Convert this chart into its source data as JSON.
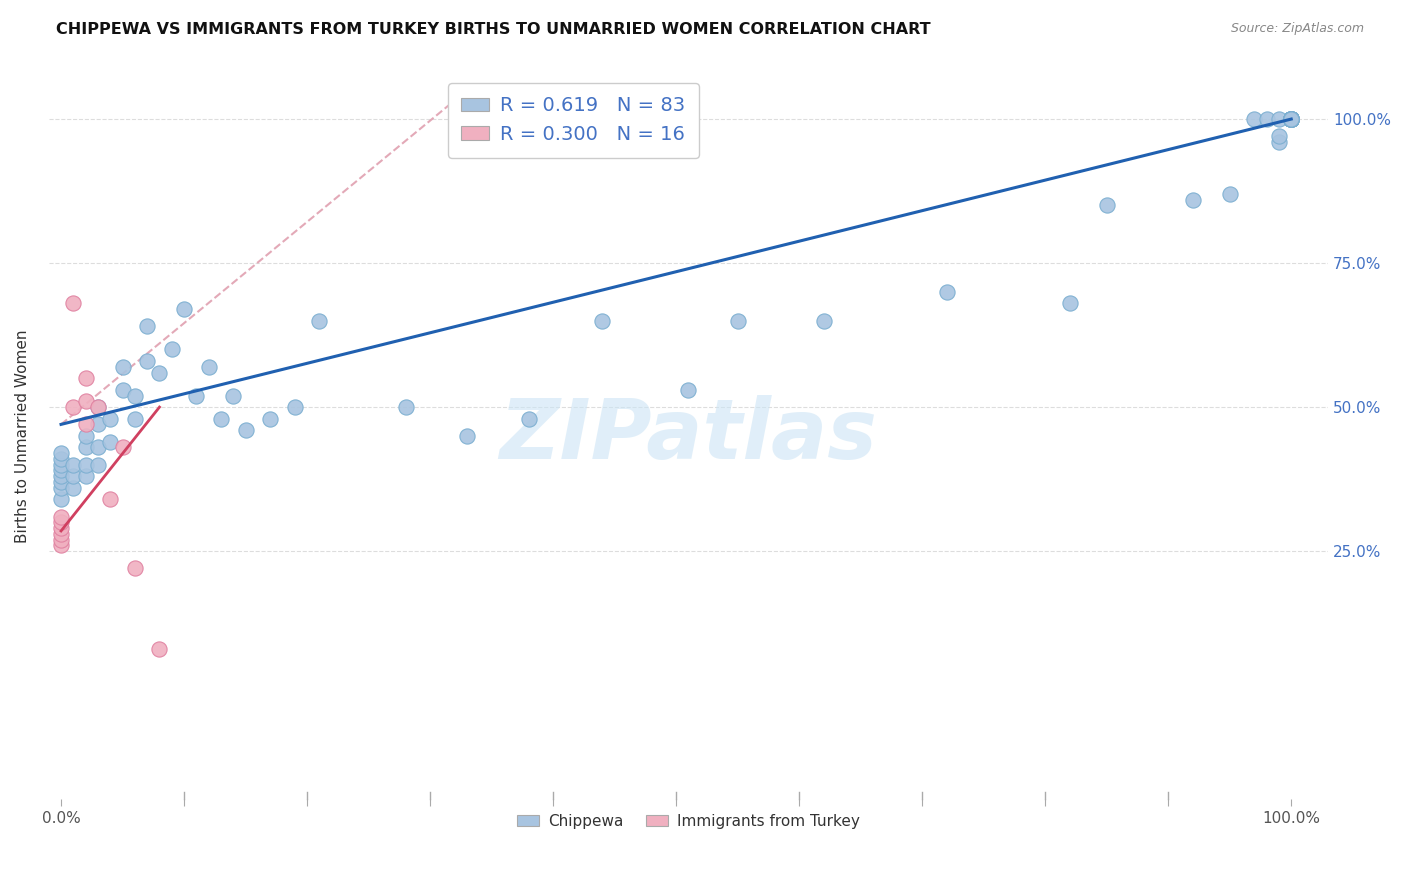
{
  "title": "CHIPPEWA VS IMMIGRANTS FROM TURKEY BIRTHS TO UNMARRIED WOMEN CORRELATION CHART",
  "source": "Source: ZipAtlas.com",
  "ylabel": "Births to Unmarried Women",
  "legend_label1": "Chippewa",
  "legend_label2": "Immigrants from Turkey",
  "R1": 0.619,
  "N1": 83,
  "R2": 0.3,
  "N2": 16,
  "watermark": "ZIPatlas",
  "blue_color": "#a8c4e0",
  "blue_edge": "#7aaed0",
  "pink_color": "#f0b0c0",
  "pink_edge": "#e080a0",
  "line_blue": "#2060b0",
  "line_dashed_color": "#e0a0b0",
  "line_pink": "#d04060",
  "grid_color": "#dddddd",
  "right_tick_color": "#4472c4",
  "chippewa_x": [
    0.0,
    0.0,
    0.0,
    0.0,
    0.0,
    0.0,
    0.0,
    0.0,
    0.01,
    0.01,
    0.01,
    0.02,
    0.02,
    0.02,
    0.02,
    0.03,
    0.03,
    0.03,
    0.03,
    0.04,
    0.04,
    0.05,
    0.05,
    0.06,
    0.06,
    0.07,
    0.07,
    0.08,
    0.09,
    0.1,
    0.11,
    0.12,
    0.13,
    0.14,
    0.15,
    0.17,
    0.19,
    0.21,
    0.28,
    0.33,
    0.38,
    0.44,
    0.51,
    0.55,
    0.62,
    0.72,
    0.82,
    0.85,
    0.92,
    0.95,
    0.97,
    0.98,
    0.99,
    0.99,
    0.99,
    1.0,
    1.0,
    1.0,
    1.0,
    1.0,
    1.0,
    1.0,
    1.0,
    1.0,
    1.0,
    1.0,
    1.0,
    1.0,
    1.0,
    1.0,
    1.0,
    1.0,
    1.0,
    1.0,
    1.0,
    1.0,
    1.0,
    1.0,
    1.0,
    1.0,
    1.0,
    1.0,
    1.0
  ],
  "chippewa_y": [
    0.34,
    0.36,
    0.37,
    0.38,
    0.39,
    0.4,
    0.41,
    0.42,
    0.36,
    0.38,
    0.4,
    0.38,
    0.4,
    0.43,
    0.45,
    0.4,
    0.43,
    0.47,
    0.5,
    0.44,
    0.48,
    0.53,
    0.57,
    0.48,
    0.52,
    0.58,
    0.64,
    0.56,
    0.6,
    0.67,
    0.52,
    0.57,
    0.48,
    0.52,
    0.46,
    0.48,
    0.5,
    0.65,
    0.5,
    0.45,
    0.48,
    0.65,
    0.53,
    0.65,
    0.65,
    0.7,
    0.68,
    0.85,
    0.86,
    0.87,
    1.0,
    1.0,
    0.96,
    0.97,
    1.0,
    1.0,
    1.0,
    1.0,
    1.0,
    1.0,
    1.0,
    1.0,
    1.0,
    1.0,
    1.0,
    1.0,
    1.0,
    1.0,
    1.0,
    1.0,
    1.0,
    1.0,
    1.0,
    1.0,
    1.0,
    1.0,
    1.0,
    1.0,
    1.0,
    1.0,
    1.0,
    1.0,
    1.0
  ],
  "turkey_x": [
    0.0,
    0.0,
    0.0,
    0.0,
    0.0,
    0.0,
    0.01,
    0.01,
    0.02,
    0.02,
    0.02,
    0.03,
    0.04,
    0.05,
    0.06,
    0.08
  ],
  "turkey_y": [
    0.26,
    0.27,
    0.28,
    0.29,
    0.3,
    0.31,
    0.5,
    0.68,
    0.47,
    0.51,
    0.55,
    0.5,
    0.34,
    0.43,
    0.22,
    0.08
  ],
  "blue_line_x0": 0.0,
  "blue_line_y0": 0.47,
  "blue_line_x1": 1.0,
  "blue_line_y1": 1.0,
  "pink_line_x0": 0.0,
  "pink_line_y0": 0.285,
  "pink_line_x1": 0.08,
  "pink_line_y1": 0.5,
  "dash_line_x0": 0.0,
  "dash_line_y0": 0.47,
  "dash_line_x1": 0.33,
  "dash_line_y1": 1.05,
  "xlim_min": -0.01,
  "xlim_max": 1.03,
  "ylim_min": -0.18,
  "ylim_max": 1.08
}
